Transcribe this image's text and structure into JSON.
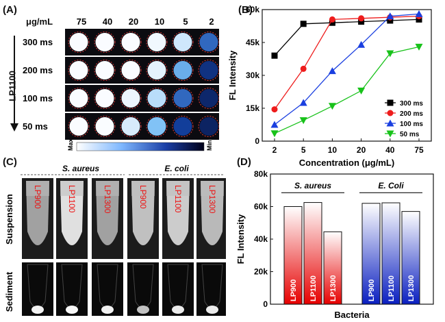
{
  "panel_a": {
    "label": "(A)",
    "unit": "μg/mL",
    "columns": [
      "75",
      "40",
      "20",
      "10",
      "5",
      "2"
    ],
    "rows": [
      "300 ms",
      "200 ms",
      "100 ms",
      "50 ms"
    ],
    "probe": "LP1100",
    "colorbar_max": "Max",
    "colorbar_min": "Min",
    "well_intensity": [
      [
        1.0,
        1.0,
        1.0,
        0.98,
        0.9,
        0.45
      ],
      [
        1.0,
        1.0,
        1.0,
        0.95,
        0.65,
        0.22
      ],
      [
        1.0,
        1.0,
        0.97,
        0.85,
        0.45,
        0.15
      ],
      [
        1.0,
        1.0,
        0.92,
        0.72,
        0.3,
        0.12
      ]
    ]
  },
  "panel_b": {
    "label": "(B)",
    "chart_data": {
      "type": "line",
      "xlabel": "Concentration (μg/mL)",
      "ylabel": "FL Intensity",
      "x": [
        "2",
        "5",
        "10",
        "20",
        "40",
        "75"
      ],
      "yticks": [
        "0",
        "15k",
        "30k",
        "45k",
        "60k"
      ],
      "ylim": [
        0,
        60000
      ],
      "series": [
        {
          "name": "300 ms",
          "color": "#000000",
          "marker": "square",
          "values": [
            39000,
            53500,
            54000,
            54500,
            55000,
            55500
          ]
        },
        {
          "name": "200 ms",
          "color": "#ee1c1c",
          "marker": "circle",
          "values": [
            14500,
            33000,
            55500,
            56000,
            56500,
            57000
          ]
        },
        {
          "name": "100 ms",
          "color": "#1a3fe0",
          "marker": "triangle-up",
          "values": [
            7500,
            17500,
            32000,
            44000,
            57000,
            58000
          ]
        },
        {
          "name": "50 ms",
          "color": "#18c21a",
          "marker": "triangle-down",
          "values": [
            3500,
            9500,
            16000,
            23000,
            40000,
            43000
          ]
        }
      ],
      "legend_position": "right"
    }
  },
  "panel_c": {
    "label": "(C)",
    "groups": [
      "S. aureus",
      "E. coli"
    ],
    "row_labels": [
      "Suspension",
      "Sediment"
    ],
    "tubes": [
      "LP900",
      "LP1100",
      "LP1300",
      "LP900",
      "LP1100",
      "LP1300"
    ],
    "suspension_brightness": [
      0.55,
      0.95,
      0.55,
      0.75,
      0.82,
      0.7
    ],
    "sediment_brightness": [
      0.9,
      0.95,
      0.9,
      0.55,
      0.85,
      0.85
    ]
  },
  "panel_d": {
    "label": "(D)",
    "chart_data": {
      "type": "bar",
      "xlabel": "Bacteria",
      "ylabel": "FL Intensity",
      "yticks": [
        "0",
        "20k",
        "40k",
        "60k",
        "80k"
      ],
      "ylim": [
        0,
        80000
      ],
      "groups": [
        {
          "name": "S. aureus",
          "color": "#e60000",
          "bars": [
            {
              "label": "LP900",
              "value": 60000
            },
            {
              "label": "LP1100",
              "value": 62500
            },
            {
              "label": "LP1300",
              "value": 44500
            }
          ]
        },
        {
          "name": "E. Coli",
          "color": "#0a1fc0",
          "bars": [
            {
              "label": "LP900",
              "value": 62000
            },
            {
              "label": "LP1100",
              "value": 62300
            },
            {
              "label": "LP1300",
              "value": 57000
            }
          ]
        }
      ]
    }
  }
}
